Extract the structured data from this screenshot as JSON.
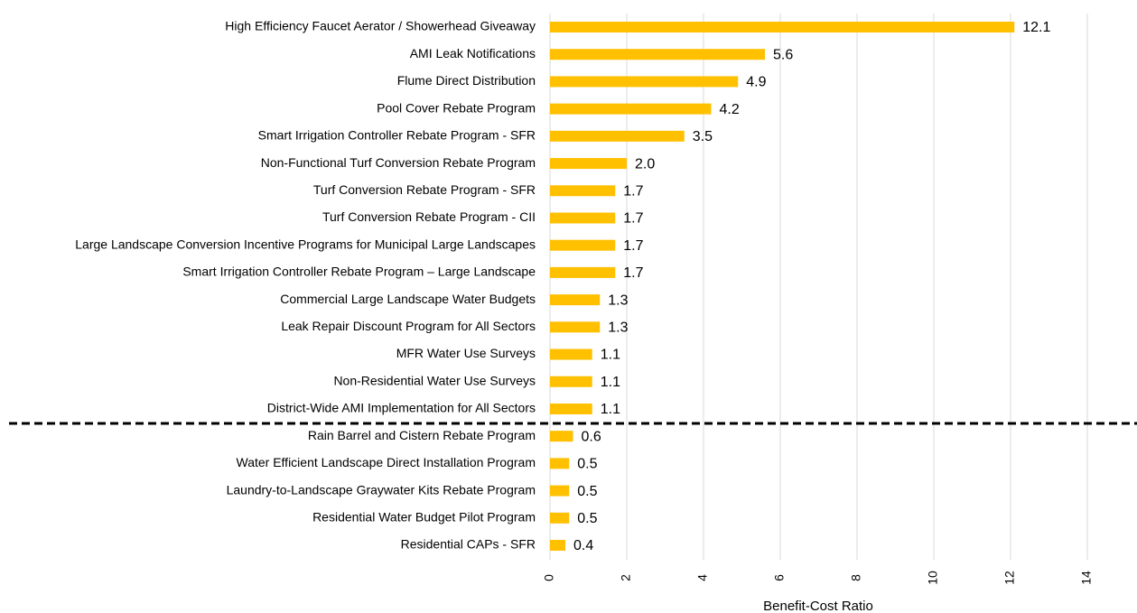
{
  "chart_data": {
    "type": "barh",
    "x_label": "Benefit-Cost Ratio",
    "categories": [
      "High Efficiency Faucet Aerator / Showerhead Giveaway",
      "AMI Leak Notifications",
      "Flume Direct Distribution",
      "Pool Cover Rebate Program",
      "Smart Irrigation Controller Rebate Program - SFR",
      "Non-Functional Turf Conversion Rebate Program",
      "Turf Conversion Rebate Program - SFR",
      "Turf Conversion Rebate Program - CII",
      "Large Landscape Conversion Incentive Programs for Municipal Large Landscapes",
      "Smart Irrigation Controller Rebate Program – Large Landscape",
      "Commercial Large Landscape Water Budgets",
      "Leak Repair Discount Program for All Sectors",
      "MFR Water Use Surveys",
      "Non-Residential Water Use Surveys",
      "District-Wide AMI Implementation for All Sectors",
      "Rain Barrel and Cistern Rebate Program",
      "Water Efficient Landscape Direct Installation Program",
      "Laundry-to-Landscape Graywater Kits Rebate Program",
      "Residential Water Budget Pilot Program",
      "Residential CAPs - SFR"
    ],
    "values": [
      12.1,
      5.6,
      4.9,
      4.2,
      3.5,
      2.0,
      1.7,
      1.7,
      1.7,
      1.7,
      1.3,
      1.3,
      1.1,
      1.1,
      1.1,
      0.6,
      0.5,
      0.5,
      0.5,
      0.4
    ],
    "value_labels": [
      "12.1",
      "5.6",
      "4.9",
      "4.2",
      "3.5",
      "2.0",
      "1.7",
      "1.7",
      "1.7",
      "1.7",
      "1.3",
      "1.3",
      "1.1",
      "1.1",
      "1.1",
      "0.6",
      "0.5",
      "0.5",
      "0.5",
      "0.4"
    ],
    "color": "#ffc000",
    "xlim": [
      0,
      14
    ],
    "xticks": [
      0,
      2,
      4,
      6,
      8,
      10,
      12,
      14
    ],
    "grid": true
  }
}
